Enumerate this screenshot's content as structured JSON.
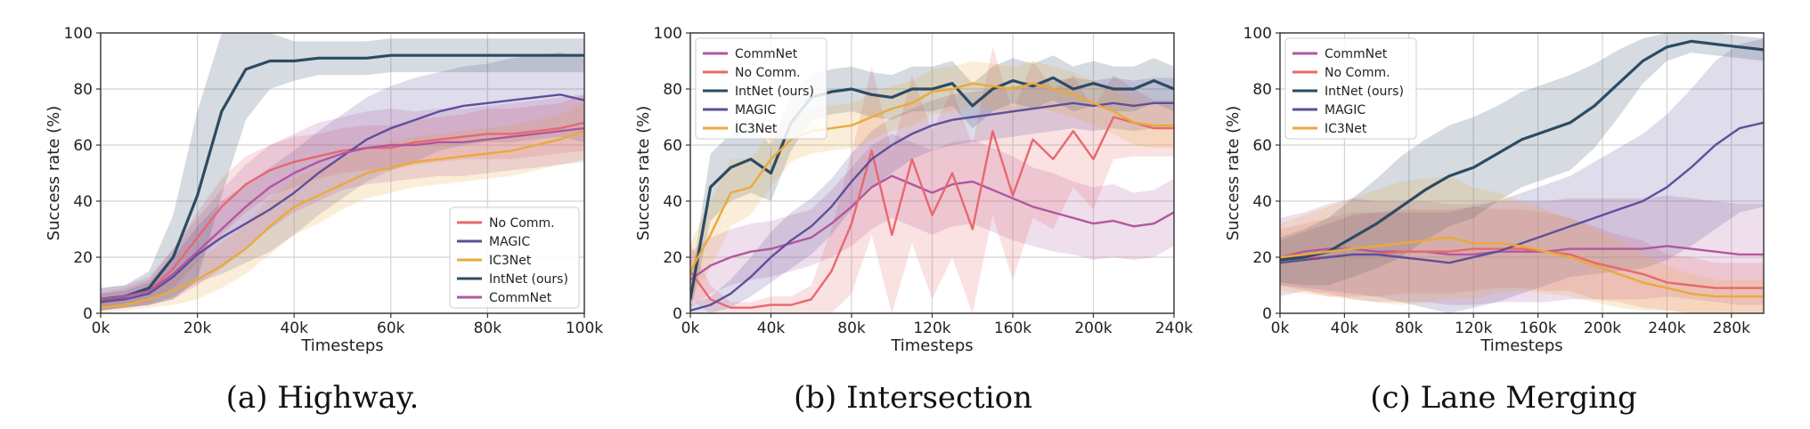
{
  "colors": {
    "commnet": "#b0589e",
    "nocomm": "#e8686e",
    "intnet": "#2c4b63",
    "magic": "#5f4f9a",
    "ic3net": "#eaaa3a"
  },
  "chart_data": [
    {
      "type": "line",
      "title": "",
      "caption": "(a) Highway.",
      "xlabel": "Timesteps",
      "ylabel": "Success rate (%)",
      "xlim": [
        0,
        100000
      ],
      "ylim": [
        0,
        100
      ],
      "xticks": [
        0,
        20000,
        40000,
        60000,
        80000,
        100000
      ],
      "xtick_labels": [
        "0k",
        "20k",
        "40k",
        "60k",
        "80k",
        "100k"
      ],
      "yticks": [
        0,
        20,
        40,
        60,
        80,
        100
      ],
      "ytick_labels": [
        "0",
        "20",
        "40",
        "60",
        "80",
        "100"
      ],
      "legend_loc": "lower-right",
      "legend_order": [
        "nocomm",
        "magic",
        "ic3net",
        "intnet",
        "commnet"
      ],
      "x": [
        0,
        5000,
        10000,
        15000,
        20000,
        25000,
        30000,
        35000,
        40000,
        45000,
        50000,
        55000,
        60000,
        65000,
        70000,
        75000,
        80000,
        85000,
        90000,
        95000,
        100000
      ],
      "series": [
        {
          "key": "nocomm",
          "name": "No Comm.",
          "values": [
            4,
            6,
            8,
            16,
            27,
            38,
            46,
            51,
            54,
            56,
            58,
            59,
            59,
            61,
            62,
            63,
            64,
            64,
            65,
            66,
            68
          ],
          "band": [
            3,
            3,
            4,
            7,
            9,
            10,
            10,
            9,
            9,
            8,
            8,
            8,
            8,
            8,
            8,
            8,
            9,
            9,
            9,
            9,
            10
          ]
        },
        {
          "key": "magic",
          "name": "MAGIC",
          "values": [
            4,
            5,
            7,
            13,
            21,
            27,
            32,
            37,
            43,
            50,
            56,
            62,
            66,
            69,
            72,
            74,
            75,
            76,
            77,
            78,
            76
          ],
          "band": [
            3,
            3,
            4,
            7,
            10,
            13,
            14,
            15,
            15,
            15,
            15,
            15,
            15,
            15,
            14,
            14,
            14,
            15,
            15,
            15,
            15
          ]
        },
        {
          "key": "ic3net",
          "name": "IC3Net",
          "values": [
            2,
            3,
            5,
            8,
            12,
            17,
            23,
            31,
            38,
            42,
            46,
            50,
            52,
            54,
            55,
            56,
            57,
            58,
            60,
            62,
            65
          ],
          "band": [
            2,
            2,
            3,
            5,
            7,
            8,
            9,
            10,
            10,
            10,
            9,
            9,
            9,
            9,
            9,
            9,
            9,
            9,
            9,
            9,
            10
          ]
        },
        {
          "key": "intnet",
          "name": "IntNet (ours)",
          "values": [
            5,
            6,
            9,
            20,
            42,
            72,
            87,
            90,
            90,
            91,
            91,
            91,
            92,
            92,
            92,
            92,
            92,
            92,
            92,
            92,
            92
          ],
          "band": [
            4,
            4,
            6,
            15,
            30,
            30,
            18,
            10,
            7,
            6,
            6,
            6,
            6,
            6,
            6,
            6,
            6,
            6,
            6,
            6,
            6
          ]
        },
        {
          "key": "commnet",
          "name": "CommNet",
          "values": [
            5,
            6,
            8,
            14,
            22,
            30,
            38,
            45,
            50,
            54,
            57,
            59,
            60,
            60,
            61,
            61,
            62,
            63,
            64,
            65,
            66
          ],
          "band": [
            4,
            4,
            5,
            9,
            12,
            14,
            15,
            15,
            14,
            14,
            13,
            13,
            13,
            12,
            12,
            12,
            12,
            12,
            12,
            12,
            12
          ]
        }
      ]
    },
    {
      "type": "line",
      "title": "",
      "caption": "(b) Intersection",
      "xlabel": "Timesteps",
      "ylabel": "Success rate (%)",
      "xlim": [
        0,
        240000
      ],
      "ylim": [
        0,
        100
      ],
      "xticks": [
        0,
        40000,
        80000,
        120000,
        160000,
        200000,
        240000
      ],
      "xtick_labels": [
        "0k",
        "40k",
        "80k",
        "120k",
        "160k",
        "200k",
        "240k"
      ],
      "yticks": [
        0,
        20,
        40,
        60,
        80,
        100
      ],
      "ytick_labels": [
        "0",
        "20",
        "40",
        "60",
        "80",
        "100"
      ],
      "legend_loc": "upper-left",
      "legend_order": [
        "commnet",
        "nocomm",
        "intnet",
        "magic",
        "ic3net"
      ],
      "x": [
        0,
        10000,
        20000,
        30000,
        40000,
        50000,
        60000,
        70000,
        80000,
        90000,
        100000,
        110000,
        120000,
        130000,
        140000,
        150000,
        160000,
        170000,
        180000,
        190000,
        200000,
        210000,
        220000,
        230000,
        240000
      ],
      "series": [
        {
          "key": "commnet",
          "name": "CommNet",
          "values": [
            12,
            17,
            20,
            22,
            23,
            25,
            27,
            32,
            38,
            45,
            49,
            46,
            43,
            46,
            47,
            44,
            41,
            38,
            36,
            34,
            32,
            33,
            31,
            32,
            36
          ],
          "band": [
            10,
            10,
            10,
            10,
            10,
            10,
            10,
            12,
            14,
            15,
            15,
            15,
            15,
            15,
            15,
            15,
            15,
            14,
            14,
            13,
            13,
            13,
            12,
            12,
            12
          ]
        },
        {
          "key": "nocomm",
          "name": "No Comm.",
          "values": [
            15,
            5,
            2,
            2,
            3,
            3,
            5,
            15,
            32,
            58,
            28,
            55,
            35,
            50,
            30,
            65,
            42,
            62,
            55,
            65,
            55,
            70,
            68,
            66,
            66
          ],
          "band": [
            10,
            5,
            2,
            2,
            3,
            3,
            5,
            15,
            25,
            30,
            30,
            30,
            30,
            30,
            30,
            30,
            30,
            28,
            25,
            20,
            18,
            15,
            12,
            10,
            10
          ]
        },
        {
          "key": "intnet",
          "name": "IntNet (ours)",
          "values": [
            5,
            45,
            52,
            55,
            50,
            68,
            77,
            79,
            80,
            78,
            77,
            80,
            80,
            82,
            74,
            80,
            83,
            81,
            84,
            80,
            82,
            80,
            80,
            83,
            80
          ],
          "band": [
            5,
            12,
            12,
            12,
            10,
            10,
            8,
            8,
            8,
            8,
            8,
            8,
            8,
            8,
            8,
            8,
            8,
            8,
            8,
            8,
            8,
            8,
            8,
            8,
            8
          ]
        },
        {
          "key": "magic",
          "name": "MAGIC",
          "values": [
            1,
            3,
            7,
            13,
            20,
            26,
            31,
            38,
            47,
            55,
            60,
            64,
            67,
            69,
            70,
            71,
            72,
            73,
            74,
            75,
            74,
            75,
            74,
            75,
            75
          ],
          "band": [
            2,
            3,
            5,
            7,
            9,
            10,
            10,
            10,
            10,
            10,
            10,
            9,
            9,
            9,
            9,
            9,
            9,
            9,
            9,
            9,
            9,
            9,
            9,
            9,
            9
          ]
        },
        {
          "key": "ic3net",
          "name": "IC3Net",
          "values": [
            15,
            28,
            43,
            45,
            55,
            62,
            65,
            66,
            67,
            70,
            73,
            75,
            79,
            80,
            82,
            81,
            80,
            82,
            80,
            78,
            75,
            72,
            68,
            67,
            67
          ],
          "band": [
            10,
            12,
            12,
            10,
            10,
            8,
            8,
            8,
            8,
            8,
            8,
            8,
            8,
            8,
            8,
            8,
            8,
            8,
            8,
            8,
            8,
            8,
            8,
            8,
            8
          ]
        }
      ]
    },
    {
      "type": "line",
      "title": "",
      "caption": "(c) Lane Merging",
      "xlabel": "Timesteps",
      "ylabel": "Success rate (%)",
      "xlim": [
        0,
        300000
      ],
      "ylim": [
        0,
        100
      ],
      "xticks": [
        0,
        40000,
        80000,
        120000,
        160000,
        200000,
        240000,
        280000
      ],
      "xtick_labels": [
        "0k",
        "40k",
        "80k",
        "120k",
        "160k",
        "200k",
        "240k",
        "280k"
      ],
      "yticks": [
        0,
        20,
        40,
        60,
        80,
        100
      ],
      "ytick_labels": [
        "0",
        "20",
        "40",
        "60",
        "80",
        "100"
      ],
      "legend_loc": "upper-left",
      "legend_order": [
        "commnet",
        "nocomm",
        "intnet",
        "magic",
        "ic3net"
      ],
      "x": [
        0,
        15000,
        30000,
        45000,
        60000,
        75000,
        90000,
        105000,
        120000,
        135000,
        150000,
        165000,
        180000,
        195000,
        210000,
        225000,
        240000,
        255000,
        270000,
        285000,
        300000
      ],
      "series": [
        {
          "key": "commnet",
          "name": "CommNet",
          "values": [
            20,
            22,
            23,
            23,
            22,
            22,
            22,
            21,
            21,
            22,
            22,
            22,
            23,
            23,
            23,
            23,
            24,
            23,
            22,
            21,
            21
          ],
          "band": [
            14,
            14,
            16,
            18,
            18,
            18,
            18,
            18,
            18,
            18,
            18,
            18,
            18,
            18,
            18,
            18,
            18,
            18,
            18,
            18,
            18
          ]
        },
        {
          "key": "nocomm",
          "name": "No Comm.",
          "values": [
            20,
            20,
            20,
            21,
            21,
            22,
            22,
            22,
            23,
            23,
            23,
            22,
            21,
            18,
            16,
            14,
            11,
            10,
            9,
            9,
            9
          ],
          "band": [
            10,
            12,
            14,
            15,
            15,
            15,
            15,
            15,
            15,
            14,
            14,
            14,
            13,
            13,
            12,
            12,
            10,
            10,
            9,
            9,
            9
          ]
        },
        {
          "key": "intnet",
          "name": "IntNet (ours)",
          "values": [
            19,
            20,
            22,
            27,
            32,
            38,
            44,
            49,
            52,
            57,
            62,
            65,
            68,
            74,
            82,
            90,
            95,
            97,
            96,
            95,
            94
          ],
          "band": [
            8,
            10,
            12,
            14,
            16,
            18,
            18,
            18,
            18,
            17,
            17,
            17,
            17,
            15,
            12,
            8,
            5,
            4,
            4,
            4,
            4
          ]
        },
        {
          "key": "magic",
          "name": "MAGIC",
          "values": [
            18,
            19,
            20,
            21,
            21,
            20,
            19,
            18,
            20,
            22,
            25,
            28,
            31,
            34,
            37,
            40,
            45,
            52,
            60,
            66,
            68
          ],
          "band": [
            8,
            10,
            12,
            14,
            15,
            16,
            17,
            18,
            18,
            18,
            18,
            18,
            18,
            20,
            22,
            24,
            26,
            28,
            30,
            30,
            30
          ]
        },
        {
          "key": "ic3net",
          "name": "IC3Net",
          "values": [
            20,
            21,
            22,
            23,
            24,
            25,
            26,
            27,
            25,
            25,
            24,
            22,
            20,
            17,
            14,
            11,
            9,
            7,
            6,
            6,
            6
          ],
          "band": [
            12,
            14,
            16,
            18,
            20,
            22,
            22,
            22,
            20,
            18,
            16,
            15,
            14,
            13,
            12,
            10,
            8,
            7,
            6,
            6,
            6
          ]
        }
      ]
    }
  ]
}
